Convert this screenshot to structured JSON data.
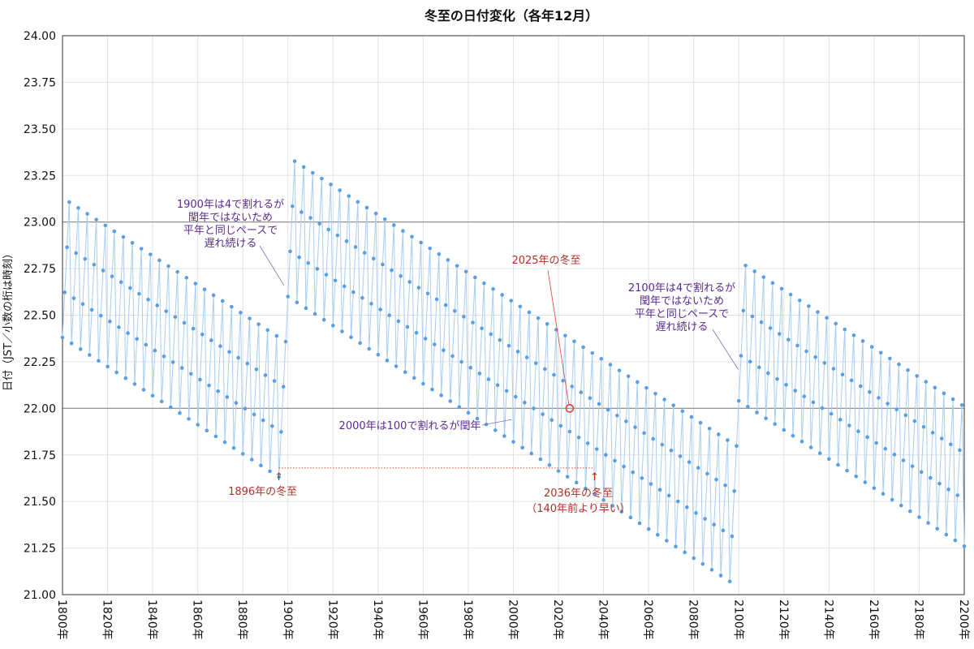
{
  "chart_data": {
    "type": "line",
    "title": "冬至の日付変化（各年12月）",
    "ylabel": "日付（JST／小数の桁は時刻）",
    "xlabel": "",
    "ylim": [
      21.0,
      24.0
    ],
    "xlim": [
      1800,
      2200
    ],
    "y_ticks": [
      "21.00",
      "21.25",
      "21.50",
      "21.75",
      "22.00",
      "22.25",
      "22.50",
      "22.75",
      "23.00",
      "23.25",
      "23.50",
      "23.75",
      "24.00"
    ],
    "x_ticks": [
      "1800年",
      "1820年",
      "1840年",
      "1860年",
      "1880年",
      "1900年",
      "1920年",
      "1940年",
      "1960年",
      "1980年",
      "2000年",
      "2020年",
      "2040年",
      "2060年",
      "2080年",
      "2100年",
      "2120年",
      "2140年",
      "2160年",
      "2180年",
      "2200年"
    ],
    "grid": true,
    "reference_lines": [
      22.0,
      23.0
    ],
    "series_color": "#5b9fe3",
    "series_line_color": "#a9cdf2",
    "highlight_color": "#e0403a",
    "model": {
      "first_year": 1800,
      "first_value": 22.38,
      "yearly_shift": 0.2422,
      "era_offsets": [
        {
          "from": 1800,
          "to": 1899,
          "offset": 0.0
        },
        {
          "from": 1900,
          "to": 2099,
          "offset": 1.0
        },
        {
          "from": 2100,
          "to": 2200,
          "offset": 2.0
        }
      ]
    },
    "annotations": {
      "left_1900": {
        "lines": [
          "1900年は4で割れるが",
          "閏年ではないため",
          "平年と同じペースで",
          "遅れ続ける"
        ],
        "point": [
          1899,
          22.65
        ]
      },
      "right_2100": {
        "lines": [
          "2100年は4で割れるが",
          "閏年ではないため",
          "平年と同じペースで",
          "遅れ続ける"
        ],
        "point": [
          2099,
          22.2
        ]
      },
      "y2000": {
        "text": "2000年は100で割れるが閏年",
        "point": [
          2000,
          21.94
        ]
      },
      "y2025": {
        "text": "2025年の冬至",
        "point": [
          2025,
          22.0
        ]
      },
      "y1896": {
        "text": "1896年の冬至",
        "point": [
          1896,
          21.68
        ]
      },
      "y2036": {
        "lines": [
          "2036年の冬至",
          "（140年前より早い）"
        ],
        "point": [
          2036,
          21.67
        ]
      }
    }
  }
}
